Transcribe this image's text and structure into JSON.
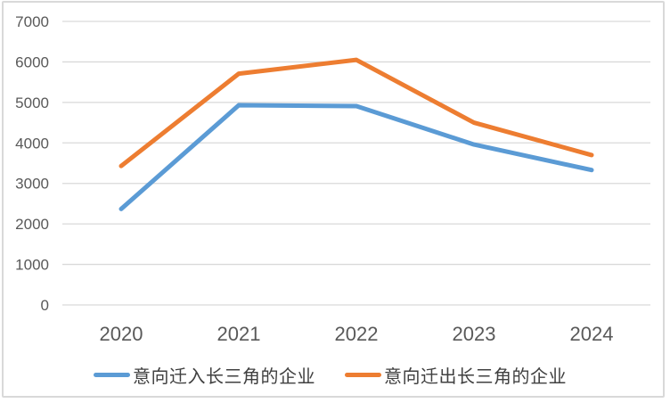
{
  "chart_data": {
    "type": "line",
    "title": "",
    "xlabel": "",
    "ylabel": "",
    "categories": [
      "2020",
      "2021",
      "2022",
      "2023",
      "2024"
    ],
    "series": [
      {
        "name": "意向迁入长三角的企业",
        "color": "#5B9BD5",
        "values": [
          2370,
          4930,
          4910,
          3960,
          3330
        ]
      },
      {
        "name": "意向迁出长三角的企业",
        "color": "#ED7D31",
        "values": [
          3430,
          5710,
          6050,
          4500,
          3700
        ]
      }
    ],
    "y_ticks": [
      0,
      1000,
      2000,
      3000,
      4000,
      5000,
      6000,
      7000
    ],
    "ylim": [
      0,
      7000
    ],
    "grid": true,
    "legend_position": "bottom",
    "colors": {
      "gridline": "#d9d9d9",
      "frame_border": "#d9d9d9",
      "axis_tick_label": "#595959",
      "legend_text": "#404040",
      "background": "#ffffff"
    }
  }
}
